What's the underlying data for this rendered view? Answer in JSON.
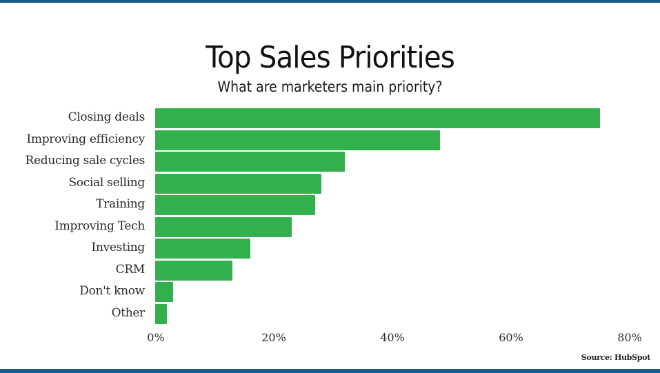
{
  "chart_data": {
    "type": "bar",
    "orientation": "horizontal",
    "title": "Top Sales Priorities",
    "subtitle": "What are marketers main priority?",
    "categories": [
      "Closing deals",
      "Improving efficiency",
      "Reducing sale cycles",
      "Social selling",
      "Training",
      "Improving Tech",
      "Investing",
      "CRM",
      "Don't know",
      "Other"
    ],
    "values": [
      75,
      48,
      32,
      28,
      27,
      23,
      16,
      13,
      3,
      2
    ],
    "xlabel": "",
    "ylabel": "",
    "xlim": [
      0,
      80
    ],
    "x_ticks": [
      "0%",
      "20%",
      "40%",
      "60%",
      "80%"
    ],
    "grid": false,
    "legend": "none",
    "bar_color": "#33b04d",
    "source": "Source: HubSpot"
  },
  "colors": {
    "bar": "#33b04d",
    "border": "#1b5a85"
  }
}
